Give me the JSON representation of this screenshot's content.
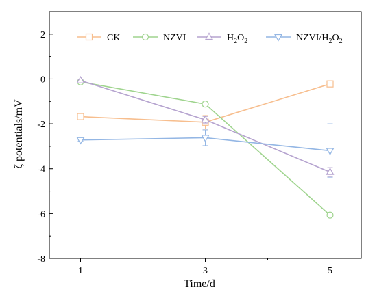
{
  "chart_data": {
    "type": "line",
    "xlabel": "Time/d",
    "ylabel": "ζ potentials/mV",
    "x": [
      1,
      3,
      5
    ],
    "xlim": [
      0.5,
      5.5
    ],
    "ylim": [
      -8,
      3
    ],
    "xticks": [
      "1",
      "3",
      "5"
    ],
    "yticks": [
      "2",
      "0",
      "-2",
      "-4",
      "-6",
      "-8"
    ],
    "grid": false,
    "legend_position": "top",
    "series": [
      {
        "name": "CK",
        "sub": "",
        "tail": "",
        "marker": "square",
        "color": "#f7be8e",
        "values": [
          -1.68,
          -1.93,
          -0.22
        ],
        "errors": [
          0.15,
          0.3,
          0.05
        ]
      },
      {
        "name": "NZVI",
        "sub": "",
        "tail": "",
        "marker": "circle",
        "color": "#9fd48e",
        "values": [
          -0.13,
          -1.12,
          -6.07
        ],
        "errors": [
          0.05,
          0.1,
          0.05
        ]
      },
      {
        "name": "H",
        "sub": "2",
        "tail": "O₂",
        "marker": "triangle-up",
        "color": "#b5a3cf",
        "values": [
          -0.07,
          -1.82,
          -4.15
        ],
        "errors": [
          0.05,
          0.15,
          0.2
        ]
      },
      {
        "name": "NZVI/H",
        "sub": "2",
        "tail": "O₂",
        "marker": "triangle-down",
        "color": "#93b6e4",
        "values": [
          -2.72,
          -2.62,
          -3.2
        ],
        "errors": [
          0.05,
          0.35,
          1.2
        ]
      }
    ]
  }
}
